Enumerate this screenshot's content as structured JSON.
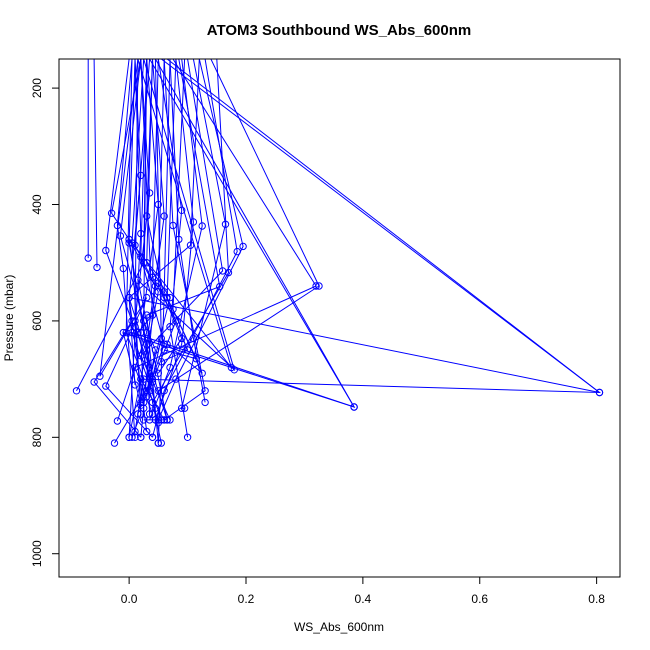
{
  "chart_data": {
    "type": "line",
    "title": "ATOM3 Southbound WS_Abs_600nm",
    "xlabel": "WS_Abs_600nm",
    "ylabel": "Pressure (mbar)",
    "xlim": [
      -0.12,
      0.84
    ],
    "ylim": [
      1040,
      150
    ],
    "y_reversed": true,
    "x_ticks": [
      "0.0",
      "0.2",
      "0.4",
      "0.6",
      "0.8"
    ],
    "x_tick_values": [
      0.0,
      0.2,
      0.4,
      0.6,
      0.8
    ],
    "y_ticks": [
      "200",
      "400",
      "600",
      "800",
      "1000"
    ],
    "y_tick_values": [
      200,
      400,
      600,
      800,
      1000
    ],
    "grid": false,
    "marker": "open-circle",
    "series_color": "#0000ff",
    "profiles": [
      {
        "x": [
          0.01,
          0.02,
          0.0
        ],
        "y": [
          150,
          450,
          800
        ]
      },
      {
        "x": [
          0.03,
          0.025,
          -0.09
        ],
        "y": [
          150,
          500,
          720
        ]
      },
      {
        "x": [
          -0.07,
          -0.07
        ],
        "y": [
          150,
          492
        ]
      },
      {
        "x": [
          -0.06,
          -0.055
        ],
        "y": [
          150,
          508
        ]
      },
      {
        "x": [
          0.02,
          -0.03,
          0.0,
          0.05,
          0.0
        ],
        "y": [
          150,
          415,
          460,
          550,
          800
        ]
      },
      {
        "x": [
          0.005,
          -0.02,
          -0.01,
          0.01
        ],
        "y": [
          150,
          436,
          510,
          800
        ]
      },
      {
        "x": [
          0.0,
          -0.04,
          0.005,
          -0.06,
          0.02
        ],
        "y": [
          150,
          479,
          600,
          705,
          800
        ]
      },
      {
        "x": [
          0.015,
          -0.05,
          0.03,
          -0.04,
          0.04
        ],
        "y": [
          150,
          695,
          560,
          712,
          800
        ]
      },
      {
        "x": [
          0.04,
          0.03,
          0.06,
          0.05
        ],
        "y": [
          150,
          420,
          560,
          810
        ]
      },
      {
        "x": [
          0.05,
          0.09,
          0.07,
          0.1
        ],
        "y": [
          150,
          410,
          610,
          800
        ]
      },
      {
        "x": [
          0.06,
          0.075,
          0.13,
          0.06
        ],
        "y": [
          150,
          436,
          720,
          770
        ]
      },
      {
        "x": [
          0.07,
          0.085,
          0.11,
          0.13
        ],
        "y": [
          150,
          460,
          630,
          740
        ]
      },
      {
        "x": [
          0.08,
          0.11,
          0.09,
          0.045
        ],
        "y": [
          150,
          430,
          640,
          770
        ]
      },
      {
        "x": [
          0.09,
          0.125,
          0.07,
          0.035
        ],
        "y": [
          150,
          437,
          680,
          770
        ]
      },
      {
        "x": [
          0.11,
          0.165,
          0.09,
          0.095
        ],
        "y": [
          150,
          434,
          750,
          750
        ]
      },
      {
        "x": [
          0.12,
          0.195,
          0.08,
          0.05
        ],
        "y": [
          150,
          472,
          700,
          770
        ]
      },
      {
        "x": [
          0.13,
          0.185,
          0.06,
          0.04
        ],
        "y": [
          150,
          481,
          720,
          800
        ]
      },
      {
        "x": [
          0.14,
          0.325,
          0.05
        ],
        "y": [
          150,
          540,
          720
        ]
      },
      {
        "x": [
          0.15,
          0.17,
          0.04,
          0.055
        ],
        "y": [
          150,
          517,
          740,
          810
        ]
      },
      {
        "x": [
          0.12,
          0.105,
          0.0,
          0.065,
          0.025
        ],
        "y": [
          150,
          470,
          560,
          770,
          770
        ]
      },
      {
        "x": [
          0.1,
          0.16,
          0.02,
          0.07
        ],
        "y": [
          150,
          514,
          660,
          770
        ]
      },
      {
        "x": [
          0.085,
          0.155,
          0.03,
          0.05
        ],
        "y": [
          150,
          541,
          590,
          810
        ]
      },
      {
        "x": [
          0.075,
          0.32,
          0.01,
          0.04
        ],
        "y": [
          150,
          540,
          680,
          760
        ]
      },
      {
        "x": [
          0.065,
          0.805,
          0.0,
          0.03
        ],
        "y": [
          150,
          723,
          560,
          790
        ]
      },
      {
        "x": [
          0.055,
          0.805,
          0.02,
          0.06
        ],
        "y": [
          150,
          723,
          700,
          770
        ]
      },
      {
        "x": [
          0.045,
          0.385,
          0.005,
          0.055
        ],
        "y": [
          150,
          748,
          620,
          770
        ]
      },
      {
        "x": [
          0.035,
          0.385,
          -0.01,
          0.02
        ],
        "y": [
          150,
          748,
          620,
          745
        ]
      },
      {
        "x": [
          0.025,
          0.18,
          0.015,
          0.065
        ],
        "y": [
          150,
          684,
          530,
          770
        ]
      },
      {
        "x": [
          0.015,
          0.175,
          0.0,
          0.045
        ],
        "y": [
          150,
          680,
          460,
          750
        ]
      },
      {
        "x": [
          0.02,
          -0.015,
          0.03,
          -0.02
        ],
        "y": [
          150,
          454,
          620,
          772
        ]
      },
      {
        "x": [
          0.01,
          0.0,
          0.04,
          -0.025
        ],
        "y": [
          150,
          466,
          700,
          810
        ]
      },
      {
        "x": [
          0.025,
          0.005,
          0.02,
          0.005
        ],
        "y": [
          150,
          466,
          760,
          800
        ]
      },
      {
        "x": [
          0.035,
          0.01,
          0.045,
          0.02
        ],
        "y": [
          150,
          470,
          540,
          800
        ]
      },
      {
        "x": [
          0.03,
          0.02,
          0.06,
          0.025
        ],
        "y": [
          150,
          490,
          640,
          740
        ]
      },
      {
        "x": [
          0.04,
          0.03,
          0.07,
          0.03
        ],
        "y": [
          150,
          500,
          560,
          720
        ]
      },
      {
        "x": [
          0.05,
          0.04,
          0.08,
          0.04
        ],
        "y": [
          150,
          525,
          600,
          705
        ]
      },
      {
        "x": [
          0.06,
          0.05,
          0.09,
          0.05
        ],
        "y": [
          150,
          535,
          630,
          690
        ]
      },
      {
        "x": [
          0.07,
          0.06,
          0.1,
          0.055
        ],
        "y": [
          150,
          550,
          650,
          670
        ]
      },
      {
        "x": [
          0.08,
          0.065,
          0.115,
          0.06
        ],
        "y": [
          150,
          560,
          665,
          650
        ]
      },
      {
        "x": [
          0.095,
          0.075,
          0.125,
          0.065
        ],
        "y": [
          150,
          580,
          690,
          640
        ]
      },
      {
        "x": [
          0.02,
          0.04,
          0.015,
          0.035
        ],
        "y": [
          150,
          590,
          620,
          700
        ]
      },
      {
        "x": [
          0.03,
          0.025,
          0.045,
          0.03
        ],
        "y": [
          150,
          600,
          650,
          730
        ]
      },
      {
        "x": [
          0.015,
          0.01,
          0.035,
          0.015
        ],
        "y": [
          150,
          610,
          680,
          760
        ]
      },
      {
        "x": [
          0.005,
          -0.005,
          0.025,
          0.01
        ],
        "y": [
          150,
          620,
          700,
          790
        ]
      },
      {
        "x": [
          0.045,
          0.055,
          0.035,
          0.05
        ],
        "y": [
          150,
          630,
          720,
          775
        ]
      },
      {
        "x": [
          0.01,
          0.02,
          0.0,
          0.01
        ],
        "y": [
          150,
          350,
          560,
          710
        ]
      },
      {
        "x": [
          0.02,
          0.035,
          0.01,
          0.02
        ],
        "y": [
          150,
          380,
          600,
          740
        ]
      },
      {
        "x": [
          0.03,
          0.05,
          0.02,
          0.025
        ],
        "y": [
          150,
          400,
          620,
          750
        ]
      },
      {
        "x": [
          0.04,
          0.06,
          0.03,
          0.035
        ],
        "y": [
          150,
          420,
          640,
          760
        ]
      }
    ]
  }
}
